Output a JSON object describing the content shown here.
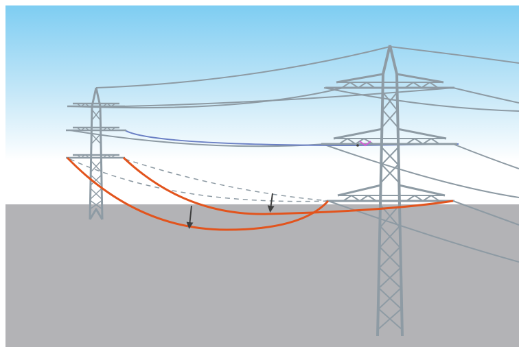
{
  "scene": {
    "description_labels": [],
    "colors": {
      "sky_top": "#7ecdf2",
      "sky_bottom": "#ffffff",
      "ground": "#b3b3b6",
      "tower": "#8e9ba4",
      "wire": "#8d9aa3",
      "insulated_wire": "#6a7fc4",
      "sagging_wire": "#e2541d",
      "original_position": "#8d9aa3",
      "arrow": "#3f3f3f",
      "contact_marker": "#d45ad6"
    },
    "elements": {
      "near_tower": "transmission-tower",
      "far_tower": "transmission-tower",
      "sag_arrows": "arrow-down-icon",
      "contact_point": "spark-icon"
    }
  }
}
